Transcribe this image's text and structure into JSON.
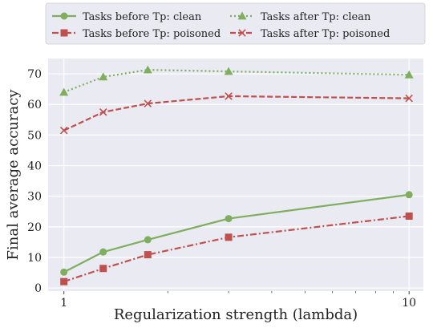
{
  "chart_data": {
    "type": "line",
    "xscale": "log",
    "x": [
      1,
      1.3,
      1.75,
      3,
      10
    ],
    "xticks": [
      "1",
      "10"
    ],
    "xlim": [
      0.9,
      11
    ],
    "ylim": [
      -1,
      75
    ],
    "yticks": [
      0,
      10,
      20,
      30,
      40,
      50,
      60,
      70
    ],
    "grid": true,
    "legend_position": "top",
    "xlabel": "Regularization strength (lambda)",
    "ylabel": "Final average accuracy",
    "series": [
      {
        "name": "Tasks before Tp: clean",
        "values": [
          5.2,
          11.8,
          15.8,
          22.7,
          30.5
        ],
        "color": "#7fae5e",
        "dash": "solid",
        "marker": "circle"
      },
      {
        "name": "Tasks after Tp: clean",
        "values": [
          64.0,
          69.0,
          71.3,
          70.8,
          69.7
        ],
        "color": "#7fae5e",
        "dash": "dotted",
        "marker": "triangle"
      },
      {
        "name": "Tasks before Tp: poisoned",
        "values": [
          2.1,
          6.4,
          10.9,
          16.6,
          23.5
        ],
        "color": "#c0504d",
        "dash": "dashdot",
        "marker": "square"
      },
      {
        "name": "Tasks after Tp: poisoned",
        "values": [
          51.5,
          57.5,
          60.3,
          62.7,
          62.0
        ],
        "color": "#c0504d",
        "dash": "dashed",
        "marker": "x"
      }
    ],
    "legend_order": [
      0,
      2,
      1,
      3
    ]
  }
}
